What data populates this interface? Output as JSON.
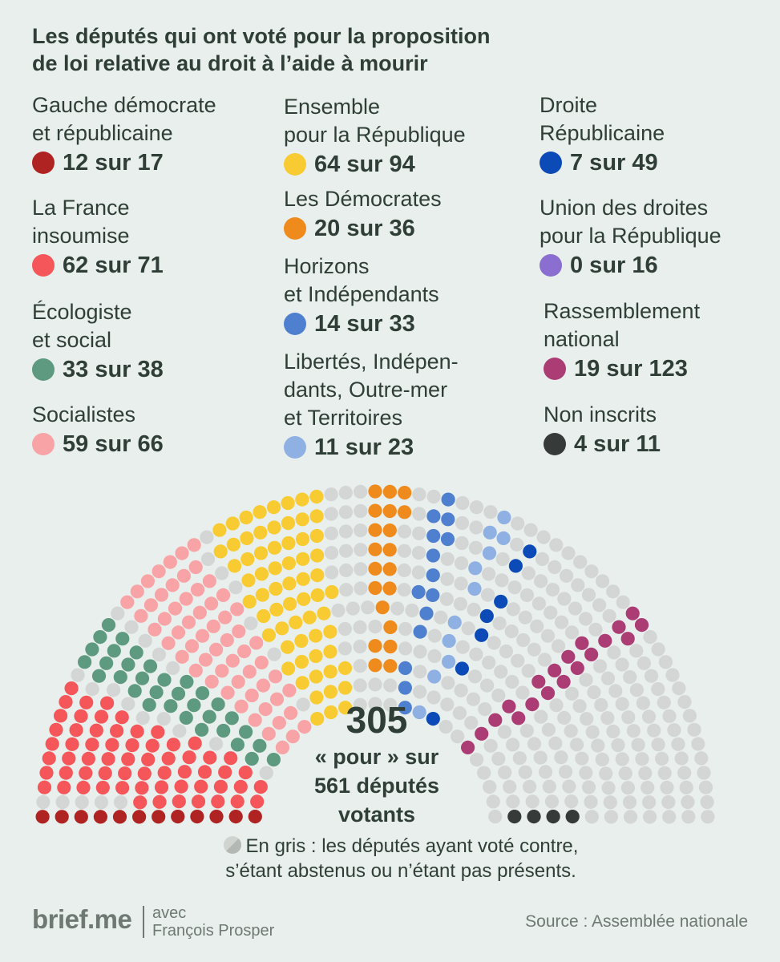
{
  "title": {
    "line1": "Les députés qui ont voté pour la proposition",
    "line2": "de loi relative au droit à l’aide à mourir"
  },
  "chart_data": {
    "type": "parliament",
    "total_label": "305",
    "subtitle_lines": [
      "« pour » sur",
      "561 députés",
      "votants"
    ],
    "total_seats": 577,
    "against_color": "#d3d6d4",
    "groups": [
      {
        "name_lines": [
          "Gauche démocrate",
          "et républicaine"
        ],
        "count_text": "12 sur 17",
        "for": 12,
        "total": 17,
        "color": "#b02323"
      },
      {
        "name_lines": [
          "La France",
          "insoumise"
        ],
        "count_text": "62 sur 71",
        "for": 62,
        "total": 71,
        "color": "#f4565a"
      },
      {
        "name_lines": [
          "Écologiste",
          "et social"
        ],
        "count_text": "33 sur 38",
        "for": 33,
        "total": 38,
        "color": "#5e9a80"
      },
      {
        "name_lines": [
          "Socialistes"
        ],
        "count_text": "59 sur 66",
        "for": 59,
        "total": 66,
        "color": "#f8a4a6"
      },
      {
        "name_lines": [
          "Ensemble",
          "pour la République"
        ],
        "count_text": "64 sur 94",
        "for": 64,
        "total": 94,
        "color": "#f7cb31"
      },
      {
        "name_lines": [
          "Les Démocrates"
        ],
        "count_text": "20 sur 36",
        "for": 20,
        "total": 36,
        "color": "#ef8a1c"
      },
      {
        "name_lines": [
          "Horizons",
          "et Indépendants"
        ],
        "count_text": "14 sur 33",
        "for": 14,
        "total": 33,
        "color": "#4f7fcf"
      },
      {
        "name_lines": [
          "Libertés, Indépen-",
          "dants, Outre-mer",
          "et Territoires"
        ],
        "count_text": "11 sur 23",
        "for": 11,
        "total": 23,
        "color": "#8fb0e3"
      },
      {
        "name_lines": [
          "Droite",
          "Républicaine"
        ],
        "count_text": "7 sur 49",
        "for": 7,
        "total": 49,
        "color": "#0b4ab7"
      },
      {
        "name_lines": [
          "Union des droites",
          "pour la République"
        ],
        "count_text": "0 sur 16",
        "for": 0,
        "total": 16,
        "color": "#8a6fd0"
      },
      {
        "name_lines": [
          "Rassemblement",
          "national"
        ],
        "count_text": "19 sur 123",
        "for": 19,
        "total": 123,
        "color": "#ab3c74"
      },
      {
        "name_lines": [
          "Non inscrits"
        ],
        "count_text": "4 sur 11",
        "for": 4,
        "total": 11,
        "color": "#363a38"
      }
    ]
  },
  "note": {
    "line1": "En gris : les députés ayant voté contre,",
    "line2": "s’étant abstenus ou n’étant pas présents."
  },
  "footer": {
    "brand": "brief.me",
    "credit_line1": "avec",
    "credit_line2": "François Prosper",
    "source": "Source : Assemblée nationale"
  }
}
